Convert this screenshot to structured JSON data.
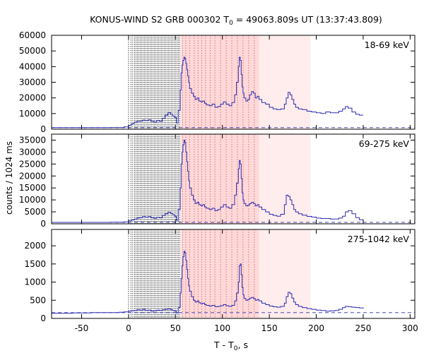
{
  "chart_data": {
    "type": "line",
    "title": {
      "main": "KONUS-WIND S2 GRB 000302 T",
      "sub": "0",
      "rest": " = 49063.809s UT (13:37:43.809)"
    },
    "xlabel": {
      "main": "T - T",
      "sub": "0",
      "rest": ", s"
    },
    "ylabel": "counts / 1024 ms",
    "xlim": [
      -82,
      305
    ],
    "xticks": [
      -50,
      0,
      50,
      100,
      150,
      200,
      250,
      300
    ],
    "grid": false,
    "colors": {
      "series": "#2b2bb0",
      "background_line": "#2b2bb0",
      "shade_dark": "#ffd9d9",
      "shade_light": "#ffecec",
      "marker_lines": "#000000",
      "marker_lines_red": "#cc4444"
    },
    "shaded_intervals": [
      {
        "x": [
          56,
          139
        ],
        "color": "shade_dark"
      },
      {
        "x": [
          139,
          194
        ],
        "color": "shade_light"
      }
    ],
    "trigger_markers_black": [
      0,
      2.5,
      4.5,
      6.5,
      8,
      9.5,
      11,
      12.5,
      14,
      15.5,
      17,
      18.5,
      20,
      21.5,
      23,
      24.5,
      26,
      27.5,
      29,
      30.5,
      32,
      33.5,
      35,
      36.5,
      38,
      39.5,
      41,
      42.5,
      44,
      45.5,
      47,
      48.5,
      50,
      51.5,
      53,
      54.5
    ],
    "trigger_markers_red": [
      57.5,
      61,
      65,
      70,
      74,
      78,
      82,
      87,
      92,
      98,
      104,
      110,
      116,
      122,
      128,
      134
    ],
    "panels": [
      {
        "label": "18-69 keV",
        "ylim": [
          0,
          60000
        ],
        "yticks": [
          0,
          10000,
          20000,
          30000,
          40000,
          50000,
          60000
        ],
        "background": 1000,
        "x": [
          -82,
          -40,
          -20,
          -5,
          0,
          3,
          6,
          9,
          12,
          15,
          18,
          21,
          24,
          27,
          30,
          33,
          36,
          39,
          42,
          45,
          47,
          49,
          51,
          53,
          55,
          56,
          57,
          58,
          59,
          60,
          61,
          62,
          63,
          64,
          65,
          67,
          69,
          71,
          73,
          75,
          77,
          79,
          81,
          83,
          86,
          89,
          92,
          95,
          98,
          101,
          104,
          107,
          110,
          113,
          115,
          117,
          118,
          119,
          120,
          121,
          122,
          123,
          125,
          127,
          129,
          131,
          133,
          135,
          137,
          139,
          142,
          146,
          150,
          154,
          158,
          162,
          166,
          168,
          170,
          172,
          174,
          176,
          178,
          181,
          185,
          190,
          195,
          200,
          205,
          210,
          215,
          220,
          224,
          228,
          231,
          234,
          238,
          242,
          246,
          250
        ],
        "y": [
          1000,
          1000,
          1100,
          1500,
          2500,
          3500,
          4500,
          5000,
          5200,
          5800,
          5500,
          6000,
          5000,
          4500,
          5500,
          5000,
          7000,
          9000,
          10500,
          9500,
          8500,
          7500,
          4000,
          12000,
          25000,
          36000,
          41000,
          44000,
          46000,
          45000,
          42000,
          38000,
          34000,
          30000,
          26000,
          23000,
          21000,
          19000,
          20000,
          18000,
          17500,
          18000,
          16500,
          15500,
          15000,
          16000,
          14000,
          14500,
          16000,
          17500,
          16000,
          15000,
          17000,
          22000,
          30000,
          40000,
          46000,
          44000,
          35000,
          27000,
          23000,
          20000,
          18000,
          19000,
          22000,
          24000,
          23000,
          20000,
          21000,
          19000,
          17000,
          16000,
          14000,
          13000,
          12500,
          13000,
          16000,
          20000,
          23500,
          22000,
          19000,
          16000,
          14000,
          13000,
          12500,
          11500,
          11000,
          10500,
          10000,
          11000,
          10500,
          10500,
          11500,
          13000,
          14500,
          13500,
          11000,
          9500,
          9000,
          9000
        ]
      },
      {
        "label": "69-275 keV",
        "ylim": [
          0,
          37500
        ],
        "yticks": [
          0,
          5000,
          10000,
          15000,
          20000,
          25000,
          30000,
          35000
        ],
        "background": 600,
        "x": [
          -82,
          -40,
          -20,
          -5,
          0,
          3,
          6,
          9,
          12,
          15,
          18,
          21,
          24,
          27,
          30,
          33,
          36,
          39,
          42,
          45,
          47,
          49,
          51,
          53,
          55,
          56,
          57,
          58,
          59,
          60,
          61,
          62,
          63,
          64,
          65,
          67,
          69,
          71,
          73,
          75,
          77,
          79,
          81,
          83,
          86,
          89,
          92,
          95,
          98,
          101,
          104,
          107,
          110,
          113,
          115,
          117,
          118,
          119,
          120,
          121,
          122,
          123,
          125,
          127,
          129,
          131,
          133,
          135,
          137,
          139,
          142,
          146,
          150,
          154,
          158,
          162,
          166,
          168,
          170,
          172,
          174,
          176,
          178,
          181,
          185,
          190,
          195,
          200,
          205,
          210,
          215,
          220,
          224,
          228,
          231,
          234,
          238,
          242,
          246,
          250
        ],
        "y": [
          600,
          600,
          650,
          800,
          1200,
          1600,
          2000,
          2400,
          2600,
          3000,
          2800,
          3000,
          2500,
          2300,
          2700,
          2500,
          3500,
          4200,
          4800,
          4300,
          3800,
          3200,
          1500,
          6000,
          15000,
          25000,
          30000,
          33000,
          35000,
          34000,
          30000,
          26000,
          22000,
          18000,
          15000,
          12000,
          10000,
          8500,
          9000,
          8000,
          7500,
          8000,
          7000,
          6500,
          6000,
          6500,
          5500,
          6000,
          7000,
          8000,
          7000,
          6500,
          8000,
          12000,
          17000,
          23000,
          26500,
          25000,
          19000,
          13000,
          10000,
          8500,
          7500,
          7800,
          8500,
          9000,
          8500,
          7500,
          8000,
          7000,
          6000,
          5000,
          4000,
          3500,
          3200,
          4000,
          8000,
          12000,
          11500,
          10000,
          8000,
          6000,
          5000,
          4200,
          3600,
          3100,
          2800,
          2400,
          2200,
          2200,
          2000,
          2000,
          2400,
          3200,
          5000,
          5500,
          4200,
          2600,
          1700,
          1400
        ]
      },
      {
        "label": "275-1042 keV",
        "ylim": [
          0,
          2450
        ],
        "yticks": [
          0,
          500,
          1000,
          1500,
          2000
        ],
        "background": 160,
        "x": [
          -82,
          -60,
          -40,
          -20,
          -10,
          -5,
          0,
          3,
          6,
          9,
          12,
          15,
          18,
          21,
          24,
          27,
          30,
          33,
          36,
          39,
          42,
          45,
          47,
          49,
          51,
          53,
          55,
          56,
          57,
          58,
          59,
          60,
          61,
          62,
          63,
          64,
          65,
          67,
          69,
          71,
          73,
          75,
          77,
          79,
          81,
          83,
          86,
          89,
          92,
          95,
          98,
          101,
          104,
          107,
          110,
          113,
          115,
          117,
          118,
          119,
          120,
          121,
          122,
          123,
          125,
          127,
          129,
          131,
          133,
          135,
          137,
          139,
          142,
          146,
          150,
          154,
          158,
          162,
          166,
          168,
          170,
          172,
          174,
          176,
          178,
          181,
          185,
          190,
          195,
          200,
          205,
          210,
          215,
          220,
          224,
          228,
          231,
          234,
          238,
          242,
          246,
          250
        ],
        "y": [
          140,
          150,
          160,
          160,
          170,
          180,
          200,
          210,
          220,
          240,
          230,
          250,
          220,
          230,
          200,
          210,
          230,
          220,
          240,
          250,
          260,
          240,
          220,
          200,
          150,
          300,
          700,
          1100,
          1450,
          1700,
          1850,
          1800,
          1600,
          1350,
          1100,
          900,
          750,
          600,
          500,
          450,
          480,
          430,
          400,
          420,
          380,
          360,
          340,
          360,
          320,
          330,
          350,
          380,
          350,
          330,
          360,
          480,
          700,
          1000,
          1450,
          1500,
          1200,
          850,
          650,
          550,
          500,
          520,
          560,
          580,
          550,
          500,
          520,
          480,
          420,
          380,
          340,
          320,
          310,
          330,
          420,
          600,
          720,
          680,
          560,
          450,
          380,
          330,
          300,
          270,
          250,
          230,
          220,
          200,
          210,
          220,
          250,
          300,
          330,
          320,
          310,
          300,
          290,
          270
        ]
      }
    ]
  }
}
